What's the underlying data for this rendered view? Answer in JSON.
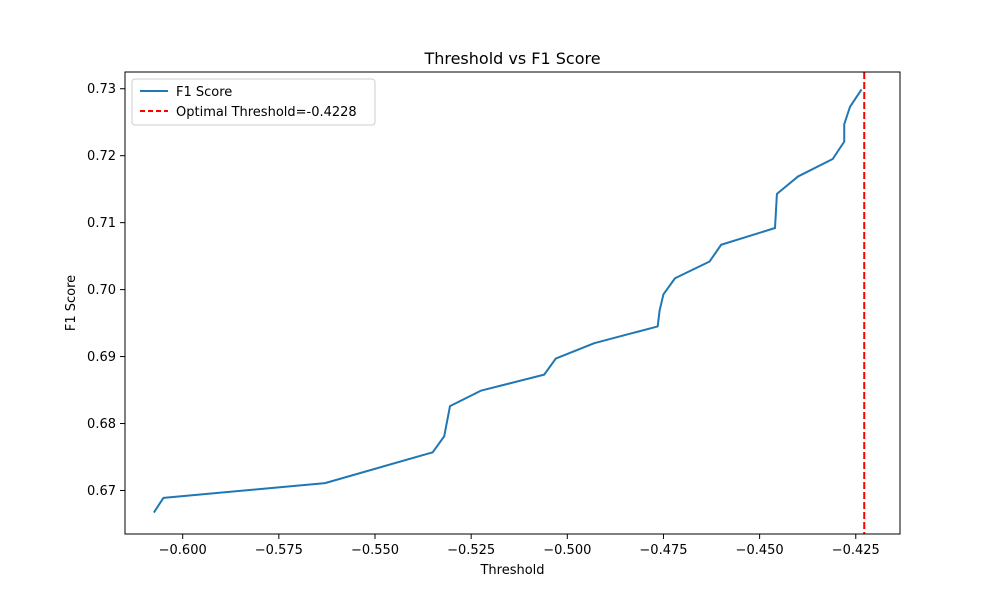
{
  "chart_data": {
    "type": "line",
    "title": "Threshold vs F1 Score",
    "xlabel": "Threshold",
    "ylabel": "F1 Score",
    "xlim": [
      -0.615,
      -0.4135
    ],
    "ylim": [
      0.6635,
      0.7325
    ],
    "xticks": [
      -0.6,
      -0.575,
      -0.55,
      -0.525,
      -0.5,
      -0.475,
      -0.45,
      -0.425
    ],
    "xtick_labels": [
      "−0.600",
      "−0.575",
      "−0.550",
      "−0.525",
      "−0.500",
      "−0.475",
      "−0.450",
      "−0.425"
    ],
    "yticks": [
      0.67,
      0.68,
      0.69,
      0.7,
      0.71,
      0.72,
      0.73
    ],
    "ytick_labels": [
      "0.67",
      "0.68",
      "0.69",
      "0.70",
      "0.71",
      "0.72",
      "0.73"
    ],
    "grid": false,
    "legend_position": "top-left",
    "series": [
      {
        "name": "F1 Score",
        "color": "#1f77b4",
        "style": "solid",
        "x": [
          -0.6075,
          -0.605,
          -0.563,
          -0.535,
          -0.532,
          -0.5305,
          -0.5225,
          -0.506,
          -0.503,
          -0.493,
          -0.4765,
          -0.476,
          -0.475,
          -0.472,
          -0.463,
          -0.46,
          -0.446,
          -0.4455,
          -0.44,
          -0.431,
          -0.428,
          -0.428,
          -0.4265,
          -0.4235
        ],
        "y": [
          0.6667,
          0.6689,
          0.6711,
          0.6757,
          0.6781,
          0.6826,
          0.6849,
          0.6873,
          0.6897,
          0.692,
          0.6945,
          0.6969,
          0.6993,
          0.7017,
          0.7042,
          0.7067,
          0.7092,
          0.7143,
          0.7169,
          0.7195,
          0.7221,
          0.7247,
          0.7273,
          0.7299
        ]
      }
    ],
    "vline": {
      "name": "Optimal Threshold=-0.4228",
      "x": -0.4228,
      "color": "#ff0000",
      "style": "dashed"
    }
  }
}
